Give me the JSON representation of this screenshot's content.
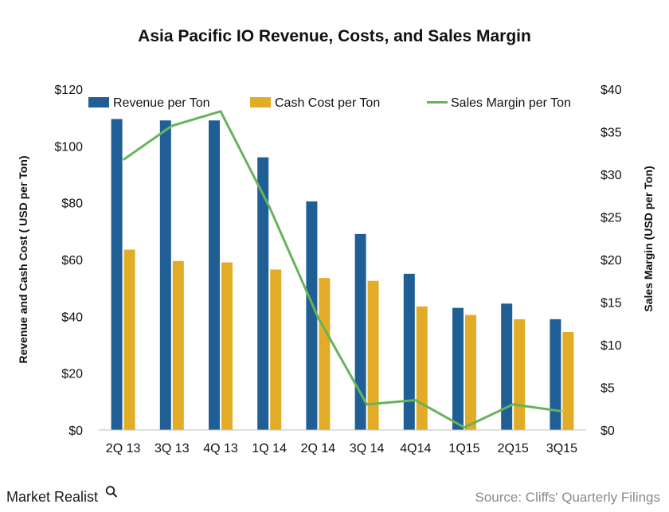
{
  "brand": {
    "name": "Market Realist"
  },
  "source": "Source: Cliffs' Quarterly Filings",
  "chart_data": {
    "type": "bar",
    "title": "Asia Pacific IO Revenue, Costs, and Sales Margin",
    "xlabel": "",
    "ylabel": "Revenue and Cash Cost ( USD per Ton)",
    "y2label": "Sales Margin (USD per Ton)",
    "categories": [
      "2Q 13",
      "3Q 13",
      "4Q 13",
      "1Q 14",
      "2Q 14",
      "3Q 14",
      "4Q14",
      "1Q15",
      "2Q15",
      "3Q15"
    ],
    "ylim": [
      0,
      120
    ],
    "y2lim": [
      0,
      40
    ],
    "yticks": [
      "$0",
      "$20",
      "$40",
      "$60",
      "$80",
      "$100",
      "$120"
    ],
    "y2ticks": [
      "$0",
      "$5",
      "$10",
      "$15",
      "$20",
      "$25",
      "$30",
      "$35",
      "$40"
    ],
    "grid": false,
    "legend_position": "top",
    "series": [
      {
        "name": "Revenue per Ton",
        "kind": "bar",
        "axis": "left",
        "color": "#1f5f96",
        "values": [
          109.5,
          109,
          109,
          96,
          80.5,
          69,
          55,
          43,
          44.5,
          39
        ]
      },
      {
        "name": "Cash Cost per Ton",
        "kind": "bar",
        "axis": "left",
        "color": "#e3ac27",
        "values": [
          63.5,
          59.5,
          59,
          56.5,
          53.5,
          52.5,
          43.5,
          40.5,
          39,
          34.5
        ]
      },
      {
        "name": "Sales Margin per Ton",
        "kind": "line",
        "axis": "right",
        "color": "#67b35c",
        "values": [
          31.7,
          35.7,
          37.4,
          26.2,
          13.2,
          3.0,
          3.5,
          0.3,
          3.0,
          2.2
        ]
      }
    ]
  }
}
